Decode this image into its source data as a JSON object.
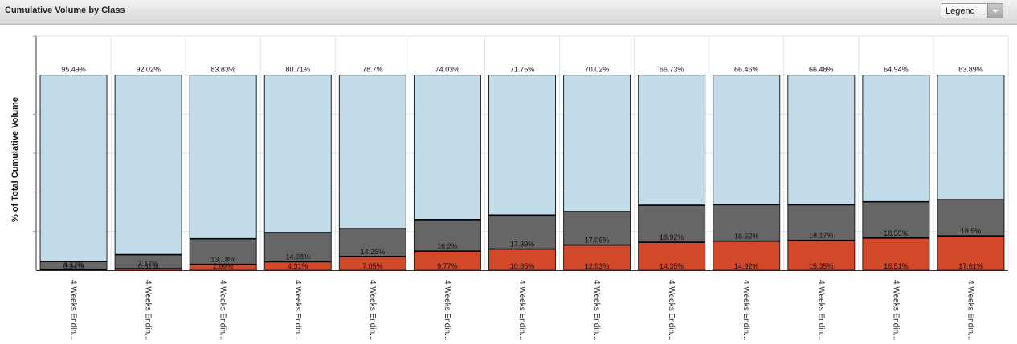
{
  "panel": {
    "title": "Cumulative Volume by Class",
    "legend_label": "Legend",
    "dropdown_icon": "chevron-down-icon"
  },
  "colors": {
    "top_segment": "#c2dde9",
    "middle_segment": "#666666",
    "bottom_segment": "#d2492a",
    "gridline": "#dde6ee",
    "bar_outline": "#222222"
  },
  "chart_data": {
    "type": "bar",
    "stacked": true,
    "title": "",
    "ylabel": "% of Total Cumulative Volume",
    "xlabel": "",
    "ylim": [
      0,
      120
    ],
    "grid": true,
    "categories": [
      "4 Weeks Endin...",
      "4 Weeks Endin...",
      "4 Weeks Endin...",
      "4 Weeks Endin...",
      "4 Weeks Endin...",
      "4 Weeks Endin...",
      "4 Weeks Endin...",
      "4 Weeks Endin...",
      "4 Weeks Endin...",
      "4 Weeks Endin...",
      "4 Weeks Endin...",
      "4 Weeks Endin...",
      "4 Weeks Endin..."
    ],
    "series": [
      {
        "values": [
          0.34,
          0.81,
          2.99,
          4.31,
          7.05,
          9.77,
          10.85,
          12.93,
          14.35,
          14.92,
          15.35,
          16.51,
          17.61
        ],
        "labels": [
          "0.34%",
          "0.81%",
          "2.99%",
          "4.31%",
          "7.05%",
          "9.77%",
          "10.85%",
          "12.93%",
          "14.35%",
          "14.92%",
          "15.35%",
          "16.51%",
          "17.61%"
        ]
      },
      {
        "values": [
          4.17,
          7.17,
          13.18,
          14.98,
          14.25,
          16.2,
          17.39,
          17.06,
          18.92,
          18.62,
          18.17,
          18.55,
          18.5
        ],
        "labels": [
          "4.17%",
          "7.17%",
          "13.18%",
          "14.98%",
          "14.25%",
          "16.2%",
          "17.39%",
          "17.06%",
          "18.92%",
          "18.62%",
          "18.17%",
          "18.55%",
          "18.5%"
        ]
      },
      {
        "values": [
          95.49,
          92.02,
          83.83,
          80.71,
          78.7,
          74.03,
          71.75,
          70.02,
          66.73,
          66.46,
          66.48,
          64.94,
          63.89
        ],
        "labels": [
          "95.49%",
          "92.02%",
          "83.83%",
          "80.71%",
          "78.7%",
          "74.03%",
          "71.75%",
          "70.02%",
          "66.73%",
          "66.46%",
          "66.48%",
          "64.94%",
          "63.89%"
        ]
      }
    ]
  }
}
